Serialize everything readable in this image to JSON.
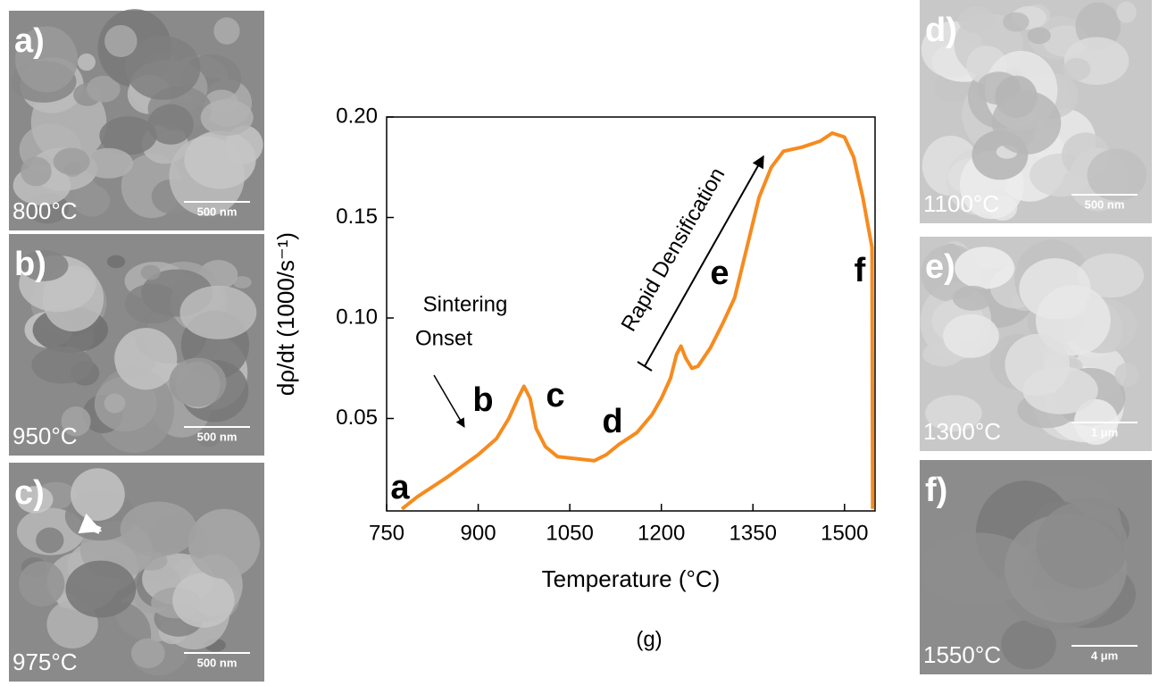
{
  "chart_data": {
    "type": "line",
    "x": [
      775,
      800,
      850,
      900,
      930,
      950,
      965,
      975,
      985,
      995,
      1010,
      1030,
      1060,
      1090,
      1110,
      1130,
      1160,
      1185,
      1200,
      1215,
      1225,
      1232,
      1240,
      1250,
      1260,
      1280,
      1300,
      1320,
      1340,
      1360,
      1380,
      1400,
      1430,
      1460,
      1480,
      1500,
      1515,
      1530,
      1545,
      1546
    ],
    "series": [
      {
        "color": "#f68b1f",
        "values": [
          0.005,
          0.011,
          0.021,
          0.032,
          0.04,
          0.05,
          0.06,
          0.066,
          0.06,
          0.045,
          0.036,
          0.031,
          0.03,
          0.029,
          0.032,
          0.037,
          0.043,
          0.052,
          0.06,
          0.07,
          0.082,
          0.086,
          0.08,
          0.075,
          0.076,
          0.085,
          0.097,
          0.11,
          0.135,
          0.16,
          0.175,
          0.183,
          0.185,
          0.188,
          0.192,
          0.19,
          0.18,
          0.16,
          0.135,
          0.005
        ]
      }
    ],
    "xlim": [
      750,
      1550
    ],
    "xticks": [
      750,
      900,
      1050,
      1200,
      1350,
      1500
    ],
    "ylim": [
      0.004,
      0.2
    ],
    "yticks": [
      {
        "value": 0.05,
        "label": "0.05"
      },
      {
        "value": 0.1,
        "label": "0.10"
      },
      {
        "value": 0.15,
        "label": "0.15"
      },
      {
        "value": 0.2,
        "label": "0.20"
      }
    ],
    "xlabel": "Temperature (°C)",
    "ylabel": "dρ/dt (1000/s⁻¹)",
    "annotations": [
      "a",
      "b",
      "c",
      "d",
      "e",
      "f",
      "Sintering",
      "Onset",
      "Rapid Densification"
    ],
    "caption": "(g)"
  },
  "panels": [
    {
      "label": "a)",
      "temperature": "800°C",
      "scale": "500 nm"
    },
    {
      "label": "b)",
      "temperature": "950°C",
      "scale": "500 nm"
    },
    {
      "label": "c)",
      "temperature": "975°C",
      "scale": "500 nm"
    },
    {
      "label": "d)",
      "temperature": "1100°C",
      "scale": "500 nm"
    },
    {
      "label": "e)",
      "temperature": "1300°C",
      "scale": "1 μm"
    },
    {
      "label": "f)",
      "temperature": "1550°C",
      "scale": "4 μm"
    }
  ]
}
